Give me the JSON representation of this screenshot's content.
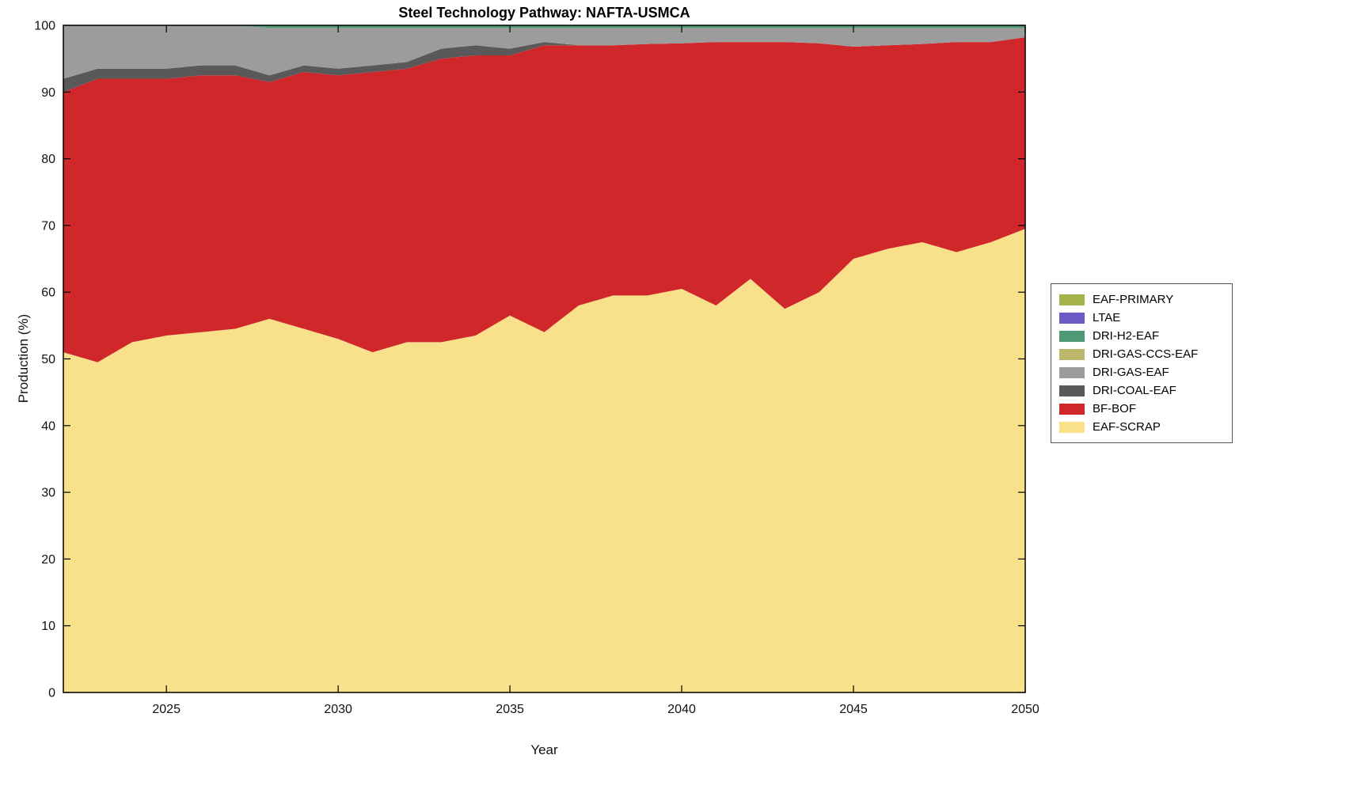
{
  "chart_data": {
    "type": "area",
    "stacked": true,
    "title": "Steel Technology Pathway: NAFTA-USMCA",
    "xlabel": "Year",
    "ylabel": "Production (%)",
    "xlim": [
      2022,
      2050
    ],
    "ylim": [
      0,
      100
    ],
    "xticks": [
      2025,
      2030,
      2035,
      2040,
      2045,
      2050
    ],
    "yticks": [
      0,
      10,
      20,
      30,
      40,
      50,
      60,
      70,
      80,
      90,
      100
    ],
    "grid": false,
    "legend_position": "right-outside",
    "x": [
      2022,
      2023,
      2024,
      2025,
      2026,
      2027,
      2028,
      2029,
      2030,
      2031,
      2032,
      2033,
      2034,
      2035,
      2036,
      2037,
      2038,
      2039,
      2040,
      2041,
      2042,
      2043,
      2044,
      2045,
      2046,
      2047,
      2048,
      2049,
      2050
    ],
    "series": [
      {
        "name": "EAF-SCRAP",
        "color": "#F8E18A",
        "values": [
          51,
          49.5,
          52.5,
          53.5,
          54,
          54.5,
          56,
          54.5,
          53,
          51,
          52.5,
          52.5,
          53.5,
          56.5,
          54,
          58,
          59.5,
          59.5,
          60.5,
          58,
          62,
          57.5,
          60,
          65,
          66.5,
          67.5,
          66,
          67.5,
          69.5
        ]
      },
      {
        "name": "BF-BOF",
        "color": "#D0272B",
        "values": [
          39,
          42.5,
          39.5,
          38.5,
          38.5,
          38,
          35.5,
          38.5,
          39.5,
          42,
          41,
          42.5,
          42,
          39,
          43,
          39,
          37.5,
          37.7,
          36.8,
          39.5,
          35.5,
          40,
          37.3,
          31.8,
          30.5,
          29.7,
          31.5,
          30,
          28.7
        ]
      },
      {
        "name": "DRI-COAL-EAF",
        "color": "#595959",
        "values": [
          2,
          1.5,
          1.5,
          1.5,
          1.5,
          1.5,
          1,
          1,
          1,
          1,
          1,
          1.5,
          1.5,
          1,
          0.5,
          0,
          0,
          0,
          0,
          0,
          0,
          0,
          0,
          0,
          0,
          0,
          0,
          0,
          0
        ]
      },
      {
        "name": "DRI-GAS-EAF",
        "color": "#9C9C9C",
        "values": [
          8,
          6.5,
          6.5,
          6.5,
          6,
          6,
          7.1,
          5.6,
          6.1,
          5.6,
          5.1,
          3.1,
          2.6,
          3.1,
          2.1,
          2.6,
          2.6,
          2.4,
          2.3,
          2.1,
          2.1,
          2.1,
          2.3,
          2.8,
          2.6,
          2.4,
          2.1,
          2.1,
          1.4
        ]
      },
      {
        "name": "DRI-GAS-CCS-EAF",
        "color": "#BDB76B",
        "values": [
          0,
          0,
          0,
          0,
          0,
          0,
          0,
          0,
          0,
          0,
          0,
          0,
          0,
          0,
          0,
          0,
          0,
          0,
          0,
          0,
          0,
          0,
          0,
          0,
          0,
          0,
          0,
          0,
          0
        ]
      },
      {
        "name": "DRI-H2-EAF",
        "color": "#4E9A77",
        "values": [
          0,
          0,
          0,
          0,
          0,
          0,
          0.4,
          0.4,
          0.4,
          0.4,
          0.4,
          0.4,
          0.4,
          0.4,
          0.4,
          0.4,
          0.4,
          0.4,
          0.4,
          0.4,
          0.4,
          0.4,
          0.4,
          0.4,
          0.4,
          0.4,
          0.4,
          0.4,
          0.4
        ]
      },
      {
        "name": "LTAE",
        "color": "#6A5BC7",
        "values": [
          0,
          0,
          0,
          0,
          0,
          0,
          0,
          0,
          0,
          0,
          0,
          0,
          0,
          0,
          0,
          0,
          0,
          0,
          0,
          0,
          0,
          0,
          0,
          0,
          0,
          0,
          0,
          0,
          0
        ]
      },
      {
        "name": "EAF-PRIMARY",
        "color": "#A6B24C",
        "values": [
          0,
          0,
          0,
          0,
          0,
          0,
          0,
          0,
          0,
          0,
          0,
          0,
          0,
          0,
          0,
          0,
          0,
          0,
          0,
          0,
          0,
          0,
          0,
          0,
          0,
          0,
          0,
          0,
          0
        ]
      }
    ],
    "legend_entries_top_to_bottom": [
      "EAF-PRIMARY",
      "LTAE",
      "DRI-H2-EAF",
      "DRI-GAS-CCS-EAF",
      "DRI-GAS-EAF",
      "DRI-COAL-EAF",
      "BF-BOF",
      "EAF-SCRAP"
    ]
  }
}
